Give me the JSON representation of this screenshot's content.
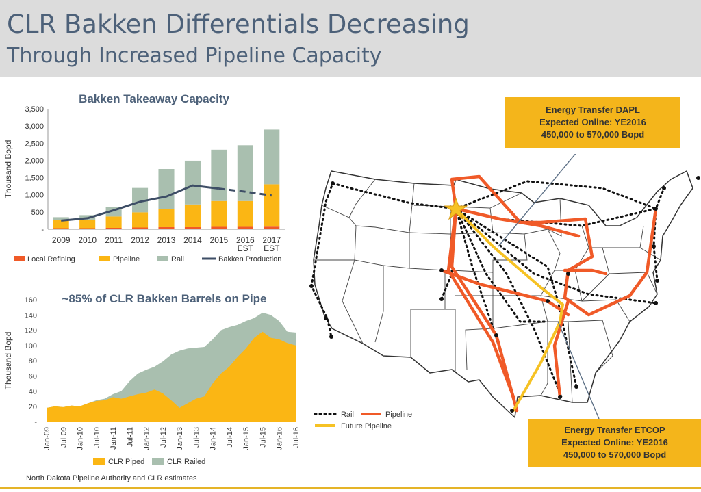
{
  "header": {
    "title": "CLR Bakken Differentials Decreasing",
    "subtitle": "Through Increased Pipeline Capacity"
  },
  "colors": {
    "local_refining": "#f05a28",
    "pipeline": "#fbb614",
    "rail": "#a9bfaf",
    "production": "#3e4e66",
    "map_pipeline": "#f05a28",
    "map_future": "#f6c224",
    "callout": "#f4b51b"
  },
  "chart_data": [
    {
      "type": "bar",
      "title": "Bakken Takeaway Capacity",
      "ylabel": "Thousand Bopd",
      "ylim": [
        0,
        3500
      ],
      "yticks": [
        "-",
        "500",
        "1,000",
        "1,500",
        "2,000",
        "2,500",
        "3,000",
        "3,500"
      ],
      "categories": [
        [
          "2009"
        ],
        [
          "2010"
        ],
        [
          "2011"
        ],
        [
          "2012"
        ],
        [
          "2013"
        ],
        [
          "2014"
        ],
        [
          "2015"
        ],
        [
          "2016",
          "EST"
        ],
        [
          "2017",
          "EST"
        ]
      ],
      "stacked": true,
      "series": [
        {
          "name": "Local Refining",
          "values": [
            30,
            30,
            40,
            50,
            60,
            60,
            70,
            70,
            75
          ]
        },
        {
          "name": "Pipeline",
          "values": [
            240,
            250,
            330,
            440,
            520,
            660,
            750,
            750,
            1230
          ]
        },
        {
          "name": "Rail",
          "values": [
            80,
            130,
            280,
            710,
            1170,
            1270,
            1490,
            1620,
            1590
          ]
        }
      ],
      "line_series": {
        "name": "Bakken Production",
        "values": [
          250,
          320,
          550,
          800,
          950,
          1270,
          1180,
          1090,
          980
        ],
        "dashed_from_index": 6
      },
      "legend": [
        "Local Refining",
        "Pipeline",
        "Rail",
        "Bakken Production"
      ],
      "legend_position": "bottom"
    },
    {
      "type": "area",
      "title": "~85% of CLR Bakken Barrels on Pipe",
      "ylabel": "Thousand Bopd",
      "ylim": [
        0,
        160
      ],
      "yticks": [
        "-",
        "20",
        "40",
        "60",
        "80",
        "100",
        "120",
        "140",
        "160"
      ],
      "x_labels": [
        "Jan-09",
        "Jul-09",
        "Jan-10",
        "Jul-10",
        "Jan-11",
        "Jul-11",
        "Jan-12",
        "Jul-12",
        "Jan-13",
        "Jul-13",
        "Jan-14",
        "Jul-14",
        "Jan-15",
        "Jul-15",
        "Jan-16",
        "Jul-16"
      ],
      "x_months": [
        0,
        3,
        6,
        9,
        12,
        15,
        18,
        21,
        24,
        27,
        30,
        33,
        36,
        39,
        42,
        45,
        48,
        51,
        54,
        57,
        60,
        63,
        66,
        69,
        72,
        75,
        78,
        81,
        84,
        87,
        90
      ],
      "stacked": true,
      "series": [
        {
          "name": "CLR Piped",
          "values": [
            18,
            20,
            19,
            21,
            20,
            24,
            27,
            28,
            32,
            30,
            33,
            36,
            38,
            42,
            37,
            28,
            18,
            24,
            30,
            33,
            50,
            63,
            72,
            85,
            96,
            110,
            118,
            110,
            108,
            103,
            100
          ]
        },
        {
          "name": "CLR Railed",
          "values": [
            0,
            0,
            0,
            0,
            0,
            0,
            1,
            2,
            4,
            10,
            20,
            27,
            30,
            30,
            42,
            60,
            75,
            72,
            67,
            65,
            58,
            57,
            52,
            42,
            36,
            26,
            25,
            30,
            24,
            15,
            17
          ]
        }
      ],
      "legend": [
        "CLR Piped",
        "CLR Railed"
      ],
      "legend_position": "bottom"
    }
  ],
  "map": {
    "legend": {
      "rail": "Rail",
      "pipeline": "Pipeline",
      "future": "Future Pipeline"
    },
    "callout_dapl": [
      "Energy Transfer DAPL",
      "Expected Online: YE2016",
      "450,000 to 570,000 Bopd"
    ],
    "callout_etcop": [
      "Energy Transfer ETCOP",
      "Expected Online: YE2016",
      "450,000 to 570,000 Bopd"
    ],
    "marker_icon": "star-icon"
  },
  "source": "North Dakota Pipeline Authority and CLR estimates"
}
